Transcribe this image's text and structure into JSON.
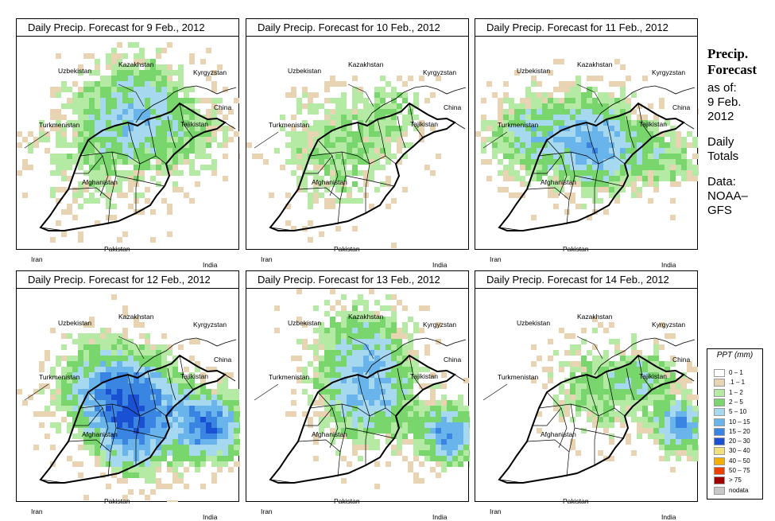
{
  "panels": [
    {
      "title": "Daily Precip. Forecast for  9 Feb., 2012",
      "labels": {
        "uzbekistan": "Uzbekistan",
        "kazakhstan": "Kazakhstan",
        "kyrgyzstan": "Kyrgyzstan",
        "china": "China",
        "turkmenistan": "Turkmenistan",
        "tajikistan": "Tajikistan",
        "afghanistan": "Afghanistan",
        "iran": "Iran",
        "pakistan": "Pakistan",
        "india": "India"
      }
    },
    {
      "title": "Daily Precip. Forecast for  10 Feb., 2012",
      "labels": {
        "uzbekistan": "Uzbekistan",
        "kazakhstan": "Kazakhstan",
        "kyrgyzstan": "Kyrgyzstan",
        "china": "China",
        "turkmenistan": "Turkmenistan",
        "tajikistan": "Tajikistan",
        "afghanistan": "Afghanistan",
        "iran": "Iran",
        "pakistan": "Pakistan",
        "india": "India"
      }
    },
    {
      "title": "Daily Precip. Forecast for  11 Feb., 2012",
      "labels": {
        "uzbekistan": "Uzbekistan",
        "kazakhstan": "Kazakhstan",
        "kyrgyzstan": "Kyrgyzstan",
        "china": "China",
        "turkmenistan": "Turkmenistan",
        "tajikistan": "Tajikistan",
        "afghanistan": "Afghanistan",
        "iran": "Iran",
        "pakistan": "Pakistan",
        "india": "India"
      }
    },
    {
      "title": "Daily Precip. Forecast for  12 Feb., 2012",
      "labels": {
        "uzbekistan": "Uzbekistan",
        "kazakhstan": "Kazakhstan",
        "kyrgyzstan": "Kyrgyzstan",
        "china": "China",
        "turkmenistan": "Turkmenistan",
        "tajikistan": "Tajikistan",
        "afghanistan": "Afghanistan",
        "iran": "Iran",
        "pakistan": "Pakistan",
        "india": "India"
      }
    },
    {
      "title": "Daily Precip. Forecast for  13 Feb., 2012",
      "labels": {
        "uzbekistan": "Uzbekistan",
        "kazakhstan": "Kazakhstan",
        "kyrgyzstan": "Kyrgyzstan",
        "china": "China",
        "turkmenistan": "Turkmenistan",
        "tajikistan": "Tajikistan",
        "afghanistan": "Afghanistan",
        "iran": "Iran",
        "pakistan": "Pakistan",
        "india": "India"
      }
    },
    {
      "title": "Daily Precip. Forecast for  14 Feb., 2012",
      "labels": {
        "uzbekistan": "Uzbekistan",
        "kazakhstan": "Kazakhstan",
        "kyrgyzstan": "Kyrgyzstan",
        "china": "China",
        "turkmenistan": "Turkmenistan",
        "tajikistan": "Tajikistan",
        "afghanistan": "Afghanistan",
        "iran": "Iran",
        "pakistan": "Pakistan",
        "india": "India"
      }
    }
  ],
  "side_info": {
    "title_line1": "Precip.",
    "title_line2": "Forecast",
    "asof": "as of:",
    "date_line1": "9 Feb.",
    "date_line2": "2012",
    "daily": "Daily",
    "totals": "Totals",
    "data_label": "Data:",
    "source1": "NOAA–",
    "source2": "GFS"
  },
  "legend": {
    "title": "PPT (mm)",
    "classes": [
      {
        "label": "0 – 1",
        "color": "#ffffff"
      },
      {
        "label": ".1 – 1",
        "color": "#e8d4b2"
      },
      {
        "label": "1 – 2",
        "color": "#b4eaa4"
      },
      {
        "label": "2 – 5",
        "color": "#78d66c"
      },
      {
        "label": "5 – 10",
        "color": "#a6d8f0"
      },
      {
        "label": "10 – 15",
        "color": "#6ab4ec"
      },
      {
        "label": "15 – 20",
        "color": "#3a84e2"
      },
      {
        "label": "20 – 30",
        "color": "#1a50d2"
      },
      {
        "label": "30 – 40",
        "color": "#f2e07c"
      },
      {
        "label": "40 – 50",
        "color": "#f4b000"
      },
      {
        "label": "50 – 75",
        "color": "#f04000"
      },
      {
        "label": "> 75",
        "color": "#a00000"
      },
      {
        "label": "nodata",
        "color": "#c8c8c8"
      }
    ]
  }
}
